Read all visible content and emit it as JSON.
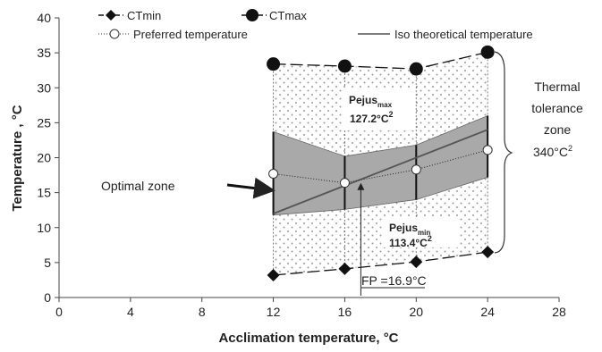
{
  "chart_data": {
    "type": "line",
    "xlabel": "Acclimation temperature, °C",
    "ylabel": "Temperature , °C",
    "xlim": [
      0,
      28
    ],
    "ylim": [
      0,
      40
    ],
    "xticks": [
      0,
      4,
      8,
      12,
      16,
      20,
      24,
      28
    ],
    "yticks": [
      0,
      5,
      10,
      15,
      20,
      25,
      30,
      35,
      40
    ],
    "grid": false,
    "legend_position": "top",
    "series": [
      {
        "name": "CTmin",
        "x": [
          12,
          16,
          20,
          24
        ],
        "y": [
          3.2,
          4.1,
          5.1,
          6.5
        ],
        "marker": "diamond",
        "line": "long-dash"
      },
      {
        "name": "CTmax",
        "x": [
          12,
          16,
          20,
          24
        ],
        "y": [
          33.4,
          33.1,
          32.7,
          35.1
        ],
        "marker": "circle-filled",
        "line": "long-dash"
      },
      {
        "name": "Preferred temperature",
        "x": [
          12,
          16,
          20,
          24
        ],
        "y": [
          17.7,
          16.4,
          18.3,
          21.1
        ],
        "marker": "circle-open",
        "line": "dotted",
        "range_low": [
          11.8,
          12.6,
          14.0,
          17.2
        ],
        "range_high": [
          23.7,
          20.2,
          21.8,
          26.0
        ]
      },
      {
        "name": "Iso theoretical temperature",
        "x": [
          12,
          24
        ],
        "y": [
          12,
          24
        ],
        "line": "solid"
      }
    ],
    "optimal_zone": {
      "x": [
        12,
        16,
        20,
        24
      ],
      "low": [
        11.8,
        12.6,
        14.0,
        17.2
      ],
      "high": [
        23.7,
        20.2,
        21.8,
        26.0
      ]
    },
    "final_preferendum": 16.9,
    "annotations": {
      "pejus_max_base": "Pejus",
      "pejus_max_sub": "max",
      "pejus_max_value": "127.2°C",
      "pejus_max_exp": "2",
      "pejus_min_base": "Pejus",
      "pejus_min_sub": "min",
      "pejus_min_value": "113.4°C",
      "pejus_min_exp": "2",
      "thermal_tolerance_line1": "Thermal",
      "thermal_tolerance_line2": "tolerance",
      "thermal_tolerance_line3": "zone",
      "thermal_tolerance_value": "340°C",
      "thermal_tolerance_exp": "2",
      "optimal_zone_label": "Optimal zone",
      "fp_label": "FP =16.9°C"
    },
    "colors": {
      "shade": "#a9a9a9",
      "dots": "#9a9a9a",
      "line": "#555555",
      "marker": "#111111"
    }
  }
}
